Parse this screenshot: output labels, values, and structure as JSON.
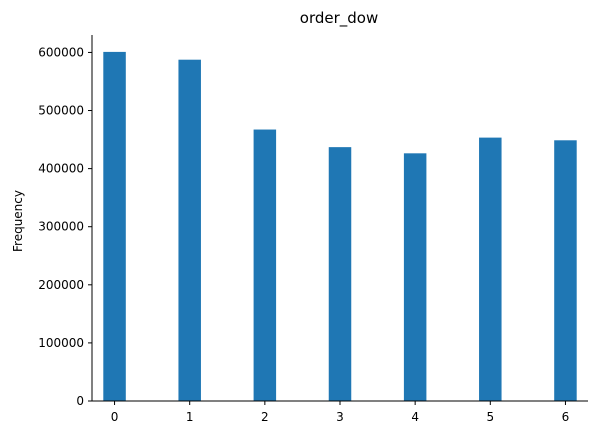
{
  "chart_data": {
    "type": "bar",
    "title": "order_dow",
    "xlabel": "",
    "ylabel": "Frequency",
    "x_ticks": [
      "0",
      "1",
      "2",
      "3",
      "4",
      "5",
      "6"
    ],
    "y_ticks": [
      "0",
      "100000",
      "200000",
      "300000",
      "400000",
      "500000",
      "600000"
    ],
    "xlim": [
      -0.3,
      6.3
    ],
    "ylim": [
      0,
      630000
    ],
    "bars": [
      {
        "x": 0.0,
        "value": 600905
      },
      {
        "x": 1.0,
        "value": 587478
      },
      {
        "x": 2.0,
        "value": 467260
      },
      {
        "x": 3.0,
        "value": 436972
      },
      {
        "x": 4.0,
        "value": 426339
      },
      {
        "x": 5.0,
        "value": 453368
      },
      {
        "x": 6.0,
        "value": 448761
      }
    ],
    "color": "#1f77b4",
    "grid": false,
    "legend": "none"
  }
}
